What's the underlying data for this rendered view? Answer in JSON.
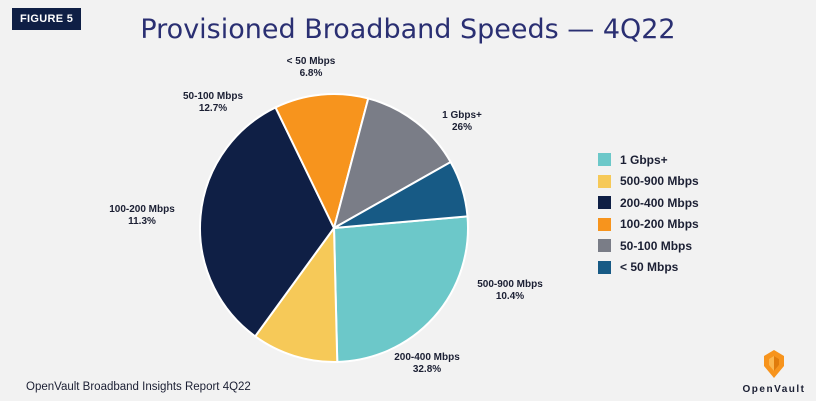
{
  "figure_label": "FIGURE 5",
  "title": "Provisioned Broadband Speeds — 4Q22",
  "footer": "OpenVault Broadband Insights Report 4Q22",
  "logo_text": "OpenVault",
  "colors": {
    "background": "#f2f2f2",
    "title": "#2a2f72",
    "badge": "#0f1f45",
    "logo_orange": "#f7941d"
  },
  "chart_data": {
    "type": "pie",
    "title": "Provisioned Broadband Speeds — 4Q22",
    "legend_position": "right",
    "slices": [
      {
        "label": "1 Gbps+",
        "value": 26,
        "value_label": "26%",
        "color": "#6cc8c9"
      },
      {
        "label": "500-900 Mbps",
        "value": 10.4,
        "value_label": "10.4%",
        "color": "#f6c958"
      },
      {
        "label": "200-400 Mbps",
        "value": 32.8,
        "value_label": "32.8%",
        "color": "#0f1f45"
      },
      {
        "label": "100-200 Mbps",
        "value": 11.3,
        "value_label": "11.3%",
        "color": "#f7941d"
      },
      {
        "label": "50-100 Mbps",
        "value": 12.7,
        "value_label": "12.7%",
        "color": "#7a7d87"
      },
      {
        "label": "< 50 Mbps",
        "value": 6.8,
        "value_label": "6.8%",
        "color": "#175a85"
      }
    ]
  }
}
